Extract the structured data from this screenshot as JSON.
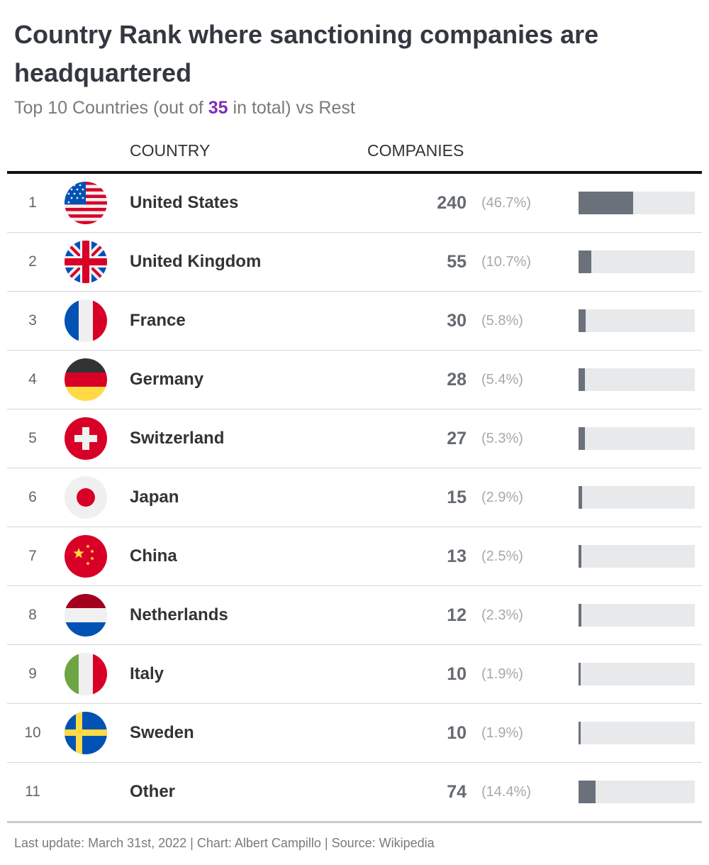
{
  "header": {
    "title": "Country Rank where sanctioning companies are headquartered",
    "subtitle_pre": "Top 10 Countries (out of ",
    "subtitle_count": "35",
    "subtitle_post": " in total) vs Rest"
  },
  "columns": {
    "country": "COUNTRY",
    "companies": "COMPANIES"
  },
  "chart_data": {
    "type": "table",
    "title": "Country Rank where sanctioning companies are headquartered",
    "subtitle": "Top 10 Countries (out of 35 in total) vs Rest",
    "columns": [
      "COUNTRY",
      "COMPANIES"
    ],
    "rows": [
      {
        "rank": "1",
        "country": "United States",
        "companies": 240,
        "pct": "(46.7%)",
        "share": 0.467,
        "flag": "us-flag-icon"
      },
      {
        "rank": "2",
        "country": "United Kingdom",
        "companies": 55,
        "pct": "(10.7%)",
        "share": 0.107,
        "flag": "uk-flag-icon"
      },
      {
        "rank": "3",
        "country": "France",
        "companies": 30,
        "pct": "(5.8%)",
        "share": 0.058,
        "flag": "france-flag-icon"
      },
      {
        "rank": "4",
        "country": "Germany",
        "companies": 28,
        "pct": "(5.4%)",
        "share": 0.054,
        "flag": "germany-flag-icon"
      },
      {
        "rank": "5",
        "country": "Switzerland",
        "companies": 27,
        "pct": "(5.3%)",
        "share": 0.053,
        "flag": "switzerland-flag-icon"
      },
      {
        "rank": "6",
        "country": "Japan",
        "companies": 15,
        "pct": "(2.9%)",
        "share": 0.029,
        "flag": "japan-flag-icon"
      },
      {
        "rank": "7",
        "country": "China",
        "companies": 13,
        "pct": "(2.5%)",
        "share": 0.025,
        "flag": "china-flag-icon"
      },
      {
        "rank": "8",
        "country": "Netherlands",
        "companies": 12,
        "pct": "(2.3%)",
        "share": 0.023,
        "flag": "netherlands-flag-icon"
      },
      {
        "rank": "9",
        "country": "Italy",
        "companies": 10,
        "pct": "(1.9%)",
        "share": 0.019,
        "flag": "italy-flag-icon"
      },
      {
        "rank": "10",
        "country": "Sweden",
        "companies": 10,
        "pct": "(1.9%)",
        "share": 0.019,
        "flag": "sweden-flag-icon"
      },
      {
        "rank": "11",
        "country": "Other",
        "companies": 74,
        "pct": "(14.4%)",
        "share": 0.144,
        "flag": ""
      }
    ]
  },
  "footer": {
    "text": "Last update: March 31st, 2022 | Chart: Albert Campillo | Source: Wikipedia"
  },
  "colors": {
    "accent": "#7b2fbe",
    "bar": "#6b717b",
    "bar_track": "#e8e9eb"
  }
}
